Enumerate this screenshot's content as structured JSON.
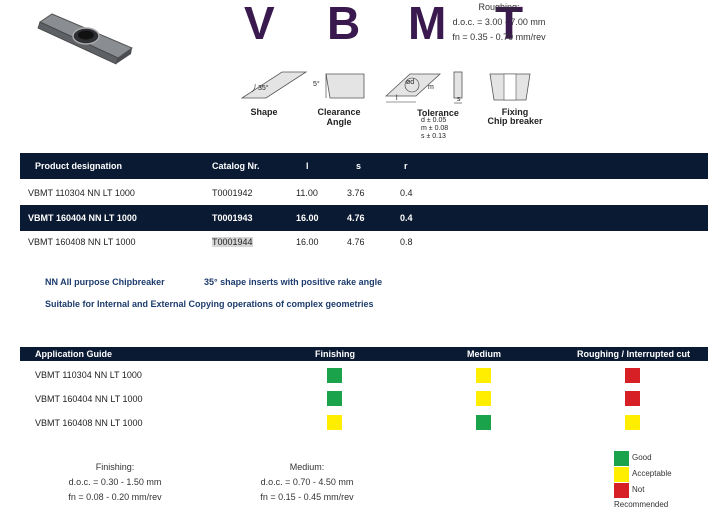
{
  "title_letters": [
    "V",
    "B",
    "M",
    "T"
  ],
  "diagram_labels": {
    "shape": "Shape",
    "clearance": "Clearance Angle",
    "tolerance": "Tolerance",
    "fixing_line1": "Fixing",
    "fixing_line2": "Chip breaker",
    "shape_angle": "35°",
    "clearance_angle": "5°",
    "dim_d": "ød",
    "dim_m": "m",
    "dim_l": "l",
    "dim_s": "s"
  },
  "tolerance_values": [
    "d  ± 0.05",
    "m ± 0.08",
    "s  ± 0.13"
  ],
  "product_table": {
    "headers": [
      "Product designation",
      "Catalog Nr.",
      "l",
      "s",
      "r"
    ],
    "rows": [
      {
        "designation": "VBMT 110304 NN LT 1000",
        "catalog": "T0001942",
        "l": "11.00",
        "s": "3.76",
        "r": "0.4"
      },
      {
        "designation": "VBMT 160404 NN LT 1000",
        "catalog": "T0001943",
        "l": "16.00",
        "s": "4.76",
        "r": "0.4"
      },
      {
        "designation": "VBMT 160408 NN LT 1000",
        "catalog": "T0001944",
        "l": "16.00",
        "s": "4.76",
        "r": "0.8"
      }
    ]
  },
  "description": {
    "line1a": "NN All purpose Chipbreaker",
    "line1b": "35° shape inserts with positive rake angle",
    "line2": "Suitable for Internal and External Copying operations of complex geometries"
  },
  "application_guide": {
    "headers": [
      "Application Guide",
      "Finishing",
      "Medium",
      "Roughing / Interrupted cut"
    ],
    "rows": [
      {
        "name": "VBMT 110304 NN LT 1000",
        "ratings": [
          "good",
          "acceptable",
          "not"
        ]
      },
      {
        "name": "VBMT 160404 NN LT 1000",
        "ratings": [
          "good",
          "acceptable",
          "not"
        ]
      },
      {
        "name": "VBMT 160408 NN LT 1000",
        "ratings": [
          "acceptable",
          "good",
          "acceptable"
        ]
      }
    ]
  },
  "conditions": [
    {
      "title": "Finishing:",
      "doc": "d.o.c. = 0.30 - 1.50 mm",
      "fn": "fn = 0.08 - 0.20 mm/rev"
    },
    {
      "title": "Medium:",
      "doc": "d.o.c. = 0.70 - 4.50 mm",
      "fn": "fn = 0.15 - 0.45 mm/rev"
    },
    {
      "title": "Roughing:",
      "doc": "d.o.c. = 3.00 - 7.00 mm",
      "fn": "fn = 0.35 - 0.70 mm/rev"
    }
  ],
  "legend": {
    "good": "Good",
    "acceptable": "Acceptable",
    "not_line1": "Not",
    "not_line2": "Recommended"
  },
  "colors": {
    "good": "#1aa34a",
    "acceptable": "#ffee00",
    "not": "#d62026",
    "header_bar": "#0b1a33",
    "title": "#3a1a4e",
    "description": "#1d3c6d"
  }
}
